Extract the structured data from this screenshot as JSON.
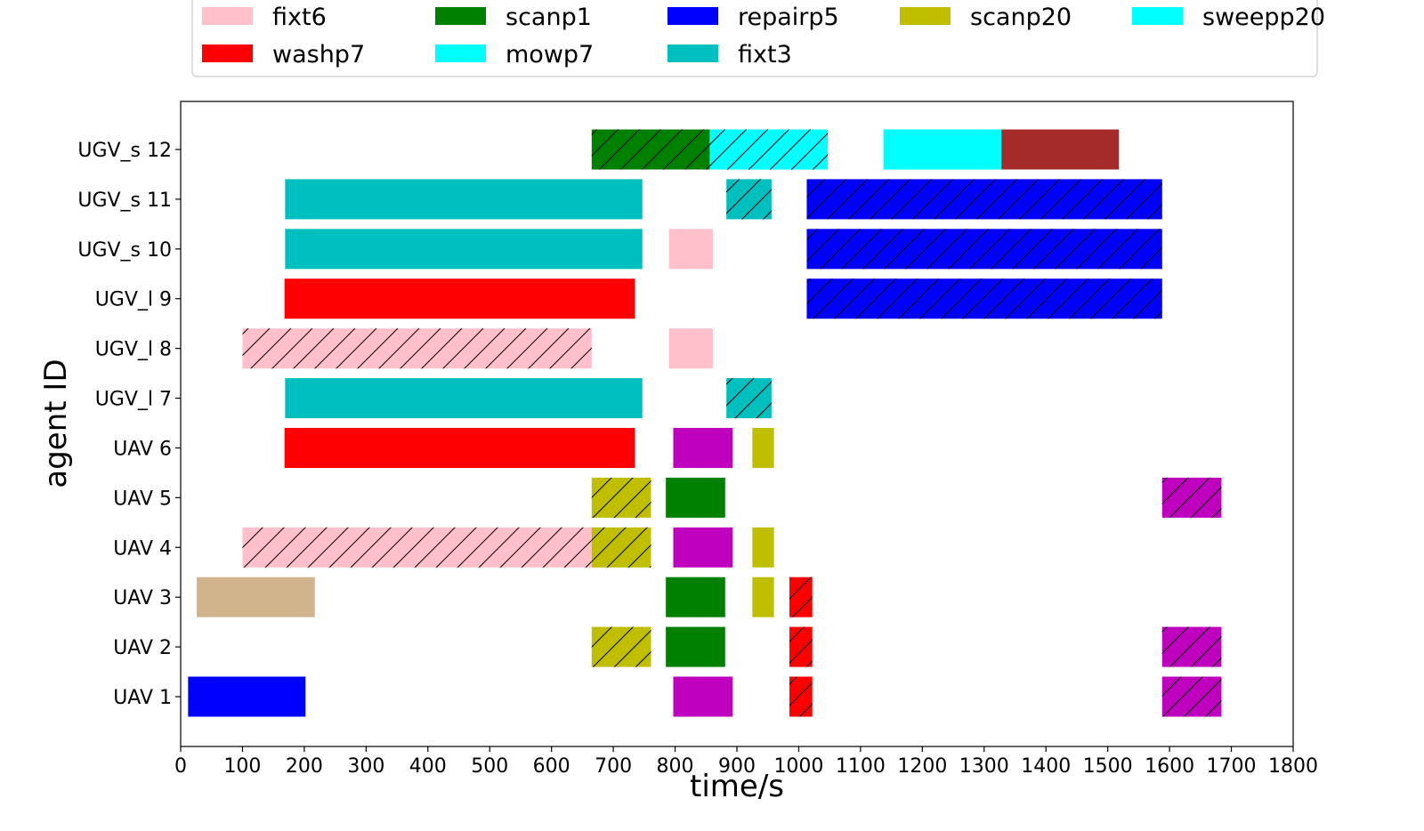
{
  "chart_data": {
    "type": "gantt",
    "xlabel": "time/s",
    "ylabel": "agent ID",
    "xlim": [
      0,
      1800
    ],
    "xticks": [
      0,
      100,
      200,
      300,
      400,
      500,
      600,
      700,
      800,
      900,
      1000,
      1100,
      1200,
      1300,
      1400,
      1500,
      1600,
      1700,
      1800
    ],
    "grid": false,
    "legend_placement": "top",
    "agents": [
      "UAV 1",
      "UAV 2",
      "UAV 3",
      "UAV 4",
      "UAV 5",
      "UAV 6",
      "UGV_l 7",
      "UGV_l 8",
      "UGV_l 9",
      "UGV_s 10",
      "UGV_s 11",
      "UGV_s 12"
    ],
    "legend": [
      {
        "name": "fixt6",
        "color": "#ffc0cb"
      },
      {
        "name": "scanp1",
        "color": "#008000"
      },
      {
        "name": "repairp5",
        "color": "#0000ff"
      },
      {
        "name": "scanp20",
        "color": "#bfbf00"
      },
      {
        "name": "sweepp20",
        "color": "#00ffff"
      },
      {
        "name": "washp7",
        "color": "#ff0000"
      },
      {
        "name": "mowp7",
        "color": "#00ffff"
      },
      {
        "name": "fixt3",
        "color": "#00bfbf"
      }
    ],
    "tasks": [
      {
        "agent": "UAV 1",
        "start": 12,
        "end": 202,
        "color": "#0000ff",
        "hatch": false
      },
      {
        "agent": "UAV 1",
        "start": 797,
        "end": 893,
        "color": "#bf00bf",
        "hatch": false
      },
      {
        "agent": "UAV 1",
        "start": 985,
        "end": 1022,
        "color": "#ff0000",
        "hatch": true
      },
      {
        "agent": "UAV 1",
        "start": 1588,
        "end": 1684,
        "color": "#bf00bf",
        "hatch": true
      },
      {
        "agent": "UAV 2",
        "start": 665,
        "end": 761,
        "color": "#bfbf00",
        "hatch": true
      },
      {
        "agent": "UAV 2",
        "start": 785,
        "end": 881,
        "color": "#008000",
        "hatch": false
      },
      {
        "agent": "UAV 2",
        "start": 985,
        "end": 1022,
        "color": "#ff0000",
        "hatch": true
      },
      {
        "agent": "UAV 2",
        "start": 1588,
        "end": 1684,
        "color": "#bf00bf",
        "hatch": true
      },
      {
        "agent": "UAV 3",
        "start": 26,
        "end": 217,
        "color": "#d2b48c",
        "hatch": false
      },
      {
        "agent": "UAV 3",
        "start": 785,
        "end": 881,
        "color": "#008000",
        "hatch": false
      },
      {
        "agent": "UAV 3",
        "start": 925,
        "end": 960,
        "color": "#bfbf00",
        "hatch": false
      },
      {
        "agent": "UAV 3",
        "start": 985,
        "end": 1022,
        "color": "#ff0000",
        "hatch": true
      },
      {
        "agent": "UAV 4",
        "start": 100,
        "end": 665,
        "color": "#ffc0cb",
        "hatch": true
      },
      {
        "agent": "UAV 4",
        "start": 665,
        "end": 761,
        "color": "#bfbf00",
        "hatch": true
      },
      {
        "agent": "UAV 4",
        "start": 797,
        "end": 893,
        "color": "#bf00bf",
        "hatch": false
      },
      {
        "agent": "UAV 4",
        "start": 925,
        "end": 960,
        "color": "#bfbf00",
        "hatch": false
      },
      {
        "agent": "UAV 5",
        "start": 665,
        "end": 761,
        "color": "#bfbf00",
        "hatch": true
      },
      {
        "agent": "UAV 5",
        "start": 785,
        "end": 881,
        "color": "#008000",
        "hatch": false
      },
      {
        "agent": "UAV 5",
        "start": 1588,
        "end": 1684,
        "color": "#bf00bf",
        "hatch": true
      },
      {
        "agent": "UAV 6",
        "start": 168,
        "end": 735,
        "color": "#ff0000",
        "hatch": false
      },
      {
        "agent": "UAV 6",
        "start": 797,
        "end": 893,
        "color": "#bf00bf",
        "hatch": false
      },
      {
        "agent": "UAV 6",
        "start": 925,
        "end": 960,
        "color": "#bfbf00",
        "hatch": false
      },
      {
        "agent": "UGV_l 7",
        "start": 169,
        "end": 747,
        "color": "#00bfbf",
        "hatch": false
      },
      {
        "agent": "UGV_l 7",
        "start": 883,
        "end": 956,
        "color": "#00bfbf",
        "hatch": true
      },
      {
        "agent": "UGV_l 8",
        "start": 100,
        "end": 665,
        "color": "#ffc0cb",
        "hatch": true
      },
      {
        "agent": "UGV_l 8",
        "start": 790,
        "end": 861,
        "color": "#ffc0cb",
        "hatch": false
      },
      {
        "agent": "UGV_l 9",
        "start": 168,
        "end": 735,
        "color": "#ff0000",
        "hatch": false
      },
      {
        "agent": "UGV_l 9",
        "start": 1013,
        "end": 1588,
        "color": "#0000ff",
        "hatch": true
      },
      {
        "agent": "UGV_s 10",
        "start": 169,
        "end": 747,
        "color": "#00bfbf",
        "hatch": false
      },
      {
        "agent": "UGV_s 10",
        "start": 790,
        "end": 861,
        "color": "#ffc0cb",
        "hatch": false
      },
      {
        "agent": "UGV_s 10",
        "start": 1013,
        "end": 1588,
        "color": "#0000ff",
        "hatch": true
      },
      {
        "agent": "UGV_s 11",
        "start": 169,
        "end": 747,
        "color": "#00bfbf",
        "hatch": false
      },
      {
        "agent": "UGV_s 11",
        "start": 883,
        "end": 956,
        "color": "#00bfbf",
        "hatch": true
      },
      {
        "agent": "UGV_s 11",
        "start": 1013,
        "end": 1588,
        "color": "#0000ff",
        "hatch": true
      },
      {
        "agent": "UGV_s 12",
        "start": 665,
        "end": 856,
        "color": "#008000",
        "hatch": true
      },
      {
        "agent": "UGV_s 12",
        "start": 856,
        "end": 1047,
        "color": "#00ffff",
        "hatch": true
      },
      {
        "agent": "UGV_s 12",
        "start": 1137,
        "end": 1328,
        "color": "#00ffff",
        "hatch": false
      },
      {
        "agent": "UGV_s 12",
        "start": 1328,
        "end": 1518,
        "color": "#a52a2a",
        "hatch": false
      }
    ]
  }
}
